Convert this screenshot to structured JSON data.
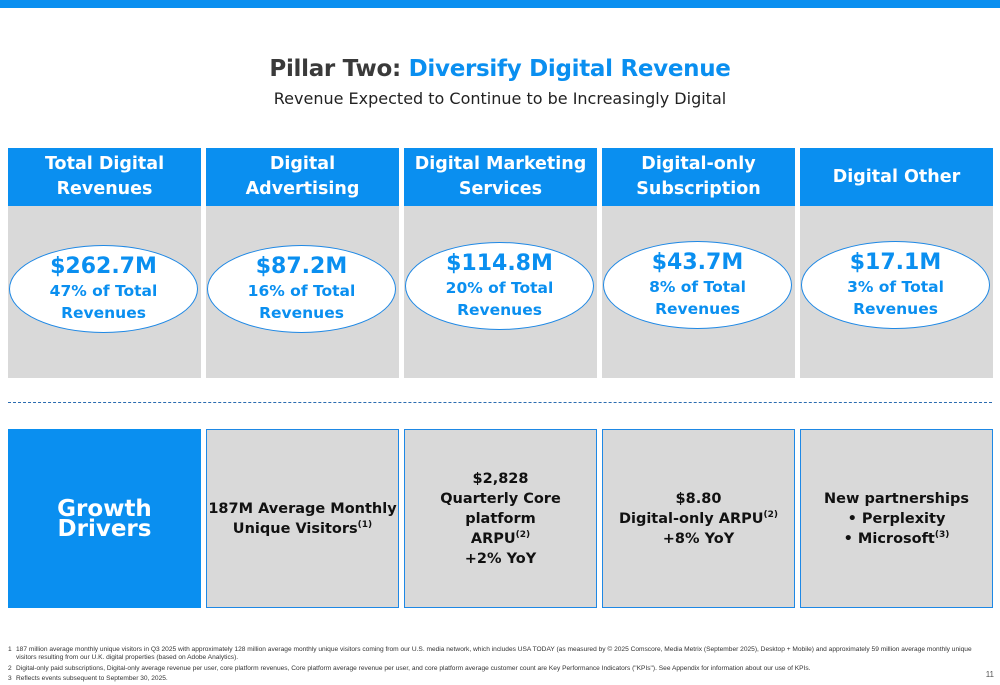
{
  "colors": {
    "accent": "#0a8ff0",
    "panel": "#d9d9d9"
  },
  "title": {
    "prefix": "Pillar Two:",
    "accent": "Diversify Digital Revenue"
  },
  "subtitle": "Revenue Expected to Continue to be Increasingly Digital",
  "columns": [
    {
      "header": [
        "Total Digital",
        "Revenues"
      ],
      "amount": "$262.7M",
      "pct": [
        "47% of Total",
        "Revenues"
      ]
    },
    {
      "header": [
        "Digital Advertising"
      ],
      "amount": "$87.2M",
      "pct": [
        "16% of Total",
        "Revenues"
      ]
    },
    {
      "header": [
        "Digital Marketing",
        "Services"
      ],
      "amount": "$114.8M",
      "pct": [
        "20% of Total",
        "Revenues"
      ]
    },
    {
      "header": [
        "Digital-only",
        "Subscription"
      ],
      "amount": "$43.7M",
      "pct": [
        "8% of Total",
        "Revenues"
      ]
    },
    {
      "header": [
        "Digital Other"
      ],
      "amount": "$17.1M",
      "pct": [
        "3% of Total",
        "Revenues"
      ]
    }
  ],
  "growth_drivers": {
    "label": "Growth Drivers",
    "items": [
      {
        "lines": [
          "187M Average Monthly",
          "Unique Visitors"
        ],
        "sup": "(1)"
      },
      {
        "lines": [
          "$2,828",
          "Quarterly Core platform",
          "ARPU",
          "+2% YoY"
        ],
        "sup": "(2)"
      },
      {
        "lines": [
          "$8.80",
          "Digital-only ARPU",
          "+8% YoY"
        ],
        "sup": "(2)"
      },
      {
        "lines": [
          "New partnerships",
          "•  Perplexity",
          "•  Microsoft"
        ],
        "sup": "(3)"
      }
    ]
  },
  "footnotes": [
    {
      "num": "1",
      "text": "187 million average monthly unique visitors in Q3 2025 with approximately 128 million average monthly unique visitors coming from our U.S. media network, which includes USA TODAY (as measured by © 2025 Comscore, Media Metrix (September 2025), Desktop + Mobile) and approximately 59 million average monthly unique visitors resulting from our U.K. digital properties (based on Adobe Analytics)."
    },
    {
      "num": "2",
      "text": "Digital-only paid subscriptions, Digital-only average revenue per user, core platform revenues, Core platform average revenue per user, and core platform average customer count are Key Performance Indicators (\"KPIs\"). See Appendix for information about our use of KPIs."
    },
    {
      "num": "3",
      "text": "Reflects events subsequent to September 30, 2025."
    }
  ],
  "page_number": "11"
}
